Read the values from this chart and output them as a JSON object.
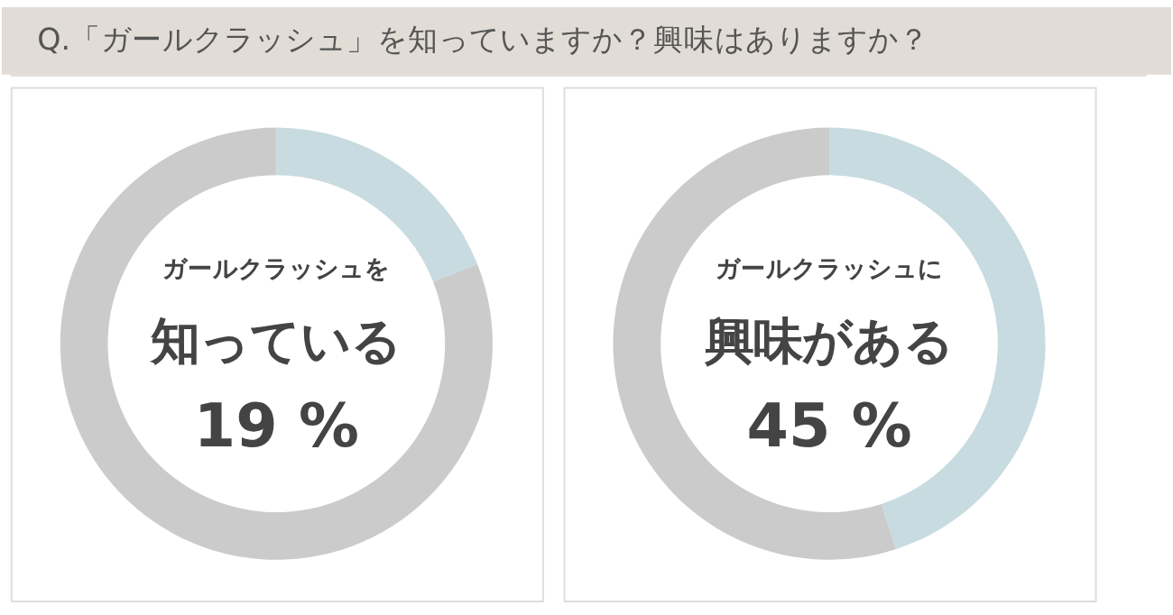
{
  "chart_data": [
    {
      "type": "donut",
      "title": "Q.「ガールクラッシュ」を知っていますか？興味はありますか？",
      "categories": [
        null,
        null
      ],
      "values": [
        19,
        81
      ],
      "colors": [
        "#c7dbe0",
        "#cbcbcb"
      ],
      "annotations": [
        "ガールクラッシュを",
        "知っている",
        "19 %"
      ]
    },
    {
      "type": "donut",
      "categories": [
        null,
        null
      ],
      "values": [
        45,
        55
      ],
      "colors": [
        "#c7dbe0",
        "#cbcbcb"
      ],
      "annotations": [
        "ガールクラッシュに",
        "興味がある",
        "45 %"
      ]
    }
  ]
}
